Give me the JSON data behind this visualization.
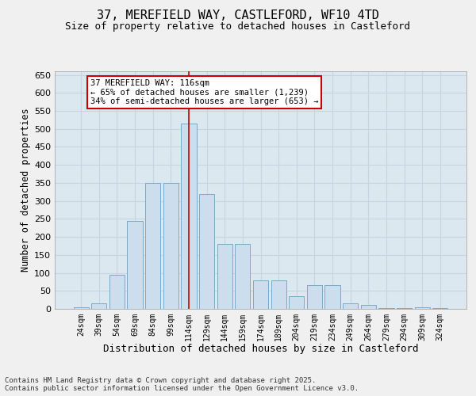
{
  "title_line1": "37, MEREFIELD WAY, CASTLEFORD, WF10 4TD",
  "title_line2": "Size of property relative to detached houses in Castleford",
  "xlabel": "Distribution of detached houses by size in Castleford",
  "ylabel": "Number of detached properties",
  "categories": [
    "24sqm",
    "39sqm",
    "54sqm",
    "69sqm",
    "84sqm",
    "99sqm",
    "114sqm",
    "129sqm",
    "144sqm",
    "159sqm",
    "174sqm",
    "189sqm",
    "204sqm",
    "219sqm",
    "234sqm",
    "249sqm",
    "264sqm",
    "279sqm",
    "294sqm",
    "309sqm",
    "324sqm"
  ],
  "values": [
    5,
    15,
    95,
    245,
    350,
    350,
    515,
    320,
    180,
    180,
    80,
    80,
    35,
    65,
    65,
    15,
    10,
    2,
    2,
    5,
    2
  ],
  "bar_color": "#ccdded",
  "bar_edge_color": "#7aaac8",
  "highlight_index": 6,
  "highlight_line_color": "#cc0000",
  "ylim": [
    0,
    660
  ],
  "yticks": [
    0,
    50,
    100,
    150,
    200,
    250,
    300,
    350,
    400,
    450,
    500,
    550,
    600,
    650
  ],
  "annotation_text": "37 MEREFIELD WAY: 116sqm\n← 65% of detached houses are smaller (1,239)\n34% of semi-detached houses are larger (653) →",
  "annotation_box_facecolor": "#ffffff",
  "annotation_box_edgecolor": "#cc0000",
  "grid_color": "#c8d4e0",
  "bg_color": "#dce8f0",
  "fig_bg_color": "#f0f0f0",
  "footer_text": "Contains HM Land Registry data © Crown copyright and database right 2025.\nContains public sector information licensed under the Open Government Licence v3.0."
}
